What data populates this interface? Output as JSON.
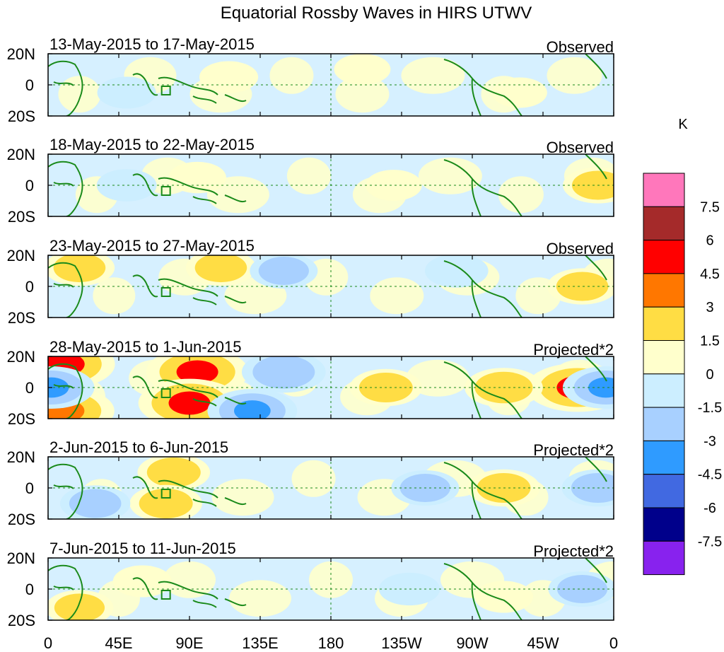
{
  "chart_data": {
    "type": "heatmap",
    "title": "Equatorial Rossby Waves in HIRS UTWV",
    "units": "K",
    "x_ticks": [
      "0",
      "45E",
      "90E",
      "135E",
      "180",
      "135W",
      "90W",
      "45W",
      "0"
    ],
    "x_range_deg": [
      0,
      360
    ],
    "y_ticks": [
      "20N",
      "0",
      "20S"
    ],
    "y_range_deg": [
      -20,
      20
    ],
    "colorbar": {
      "levels": [
        "7.5",
        "6",
        "4.5",
        "3",
        "1.5",
        "0",
        "-1.5",
        "-3",
        "-4.5",
        "-6",
        "-7.5"
      ],
      "colors": [
        "#ff77bb",
        "#a52a2a",
        "#ff0000",
        "#ff7700",
        "#ffdd44",
        "#ffffcc",
        "#cceeff",
        "#a8d0ff",
        "#2f9bff",
        "#4169e1",
        "#00008b",
        "#8822ee"
      ]
    },
    "panels": [
      {
        "date_range": "13-May-2015 to 17-May-2015",
        "label": "Observed",
        "anomalies": [
          {
            "lon": 115,
            "lat": 5,
            "value": 0.8
          },
          {
            "lon": 200,
            "lat": 10,
            "value": 0.6
          },
          {
            "lon": 300,
            "lat": -5,
            "value": 0.5
          },
          {
            "lon": 50,
            "lat": -5,
            "value": -0.8
          }
        ]
      },
      {
        "date_range": "18-May-2015 to 22-May-2015",
        "label": "Observed",
        "anomalies": [
          {
            "lon": 95,
            "lat": 5,
            "value": 0.7
          },
          {
            "lon": 220,
            "lat": 0,
            "value": 0.6
          },
          {
            "lon": 350,
            "lat": 0,
            "value": 1.8
          },
          {
            "lon": 50,
            "lat": 0,
            "value": -0.9
          }
        ]
      },
      {
        "date_range": "23-May-2015 to 27-May-2015",
        "label": "Observed",
        "anomalies": [
          {
            "lon": 20,
            "lat": 12,
            "value": 1.8
          },
          {
            "lon": 110,
            "lat": 12,
            "value": 1.8
          },
          {
            "lon": 340,
            "lat": 0,
            "value": 1.8
          },
          {
            "lon": 150,
            "lat": 10,
            "value": -1.6
          },
          {
            "lon": 260,
            "lat": 10,
            "value": -1.2
          }
        ]
      },
      {
        "date_range": "28-May-2015 to 1-Jun-2015",
        "label": "Projected*2",
        "anomalies": [
          {
            "lon": 10,
            "lat": 15,
            "value": 4.6
          },
          {
            "lon": 10,
            "lat": -15,
            "value": 4.5
          },
          {
            "lon": 95,
            "lat": 10,
            "value": 4.6
          },
          {
            "lon": 90,
            "lat": -10,
            "value": 4.6
          },
          {
            "lon": 337,
            "lat": 0,
            "value": 4.6
          },
          {
            "lon": 290,
            "lat": 0,
            "value": 2.5
          },
          {
            "lon": 215,
            "lat": 0,
            "value": 2.0
          },
          {
            "lon": 2,
            "lat": 0,
            "value": -3.2
          },
          {
            "lon": 150,
            "lat": 10,
            "value": -3.0
          },
          {
            "lon": 130,
            "lat": -15,
            "value": -3.5
          },
          {
            "lon": 355,
            "lat": 0,
            "value": -3.2
          }
        ]
      },
      {
        "date_range": "2-Jun-2015 to 6-Jun-2015",
        "label": "Projected*2",
        "anomalies": [
          {
            "lon": 80,
            "lat": 10,
            "value": 2.0
          },
          {
            "lon": 75,
            "lat": -10,
            "value": 2.0
          },
          {
            "lon": 290,
            "lat": 0,
            "value": 2.0
          },
          {
            "lon": 30,
            "lat": -10,
            "value": -1.8
          },
          {
            "lon": 240,
            "lat": 0,
            "value": -1.6
          },
          {
            "lon": 350,
            "lat": 0,
            "value": -2.0
          }
        ]
      },
      {
        "date_range": "7-Jun-2015 to 11-Jun-2015",
        "label": "Projected*2",
        "anomalies": [
          {
            "lon": 60,
            "lat": 5,
            "value": 0.8
          },
          {
            "lon": 290,
            "lat": -5,
            "value": 0.8
          },
          {
            "lon": 20,
            "lat": -12,
            "value": 1.6
          },
          {
            "lon": 340,
            "lat": 0,
            "value": -1.6
          },
          {
            "lon": 230,
            "lat": 0,
            "value": -1.0
          }
        ]
      }
    ]
  }
}
